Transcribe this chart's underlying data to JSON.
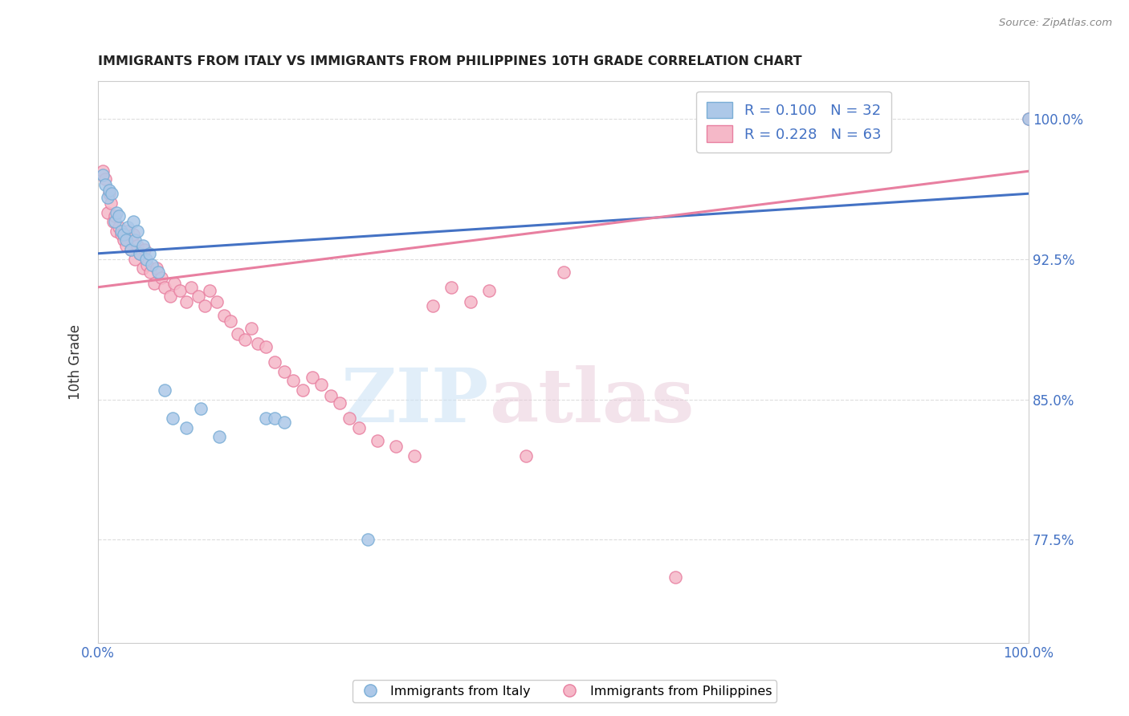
{
  "title": "IMMIGRANTS FROM ITALY VS IMMIGRANTS FROM PHILIPPINES 10TH GRADE CORRELATION CHART",
  "source": "Source: ZipAtlas.com",
  "ylabel": "10th Grade",
  "xlim": [
    0.0,
    1.0
  ],
  "ylim": [
    0.72,
    1.02
  ],
  "yticks": [
    0.775,
    0.85,
    0.925,
    1.0
  ],
  "ytick_labels": [
    "77.5%",
    "85.0%",
    "92.5%",
    "100.0%"
  ],
  "xticks": [
    0.0,
    0.2,
    0.4,
    0.6,
    0.8,
    1.0
  ],
  "xtick_labels": [
    "0.0%",
    "",
    "",
    "",
    "",
    "100.0%"
  ],
  "italy_color": "#adc8e8",
  "italy_edge_color": "#7aaed6",
  "philippines_color": "#f5b8c8",
  "philippines_edge_color": "#e87fa0",
  "italy_line_color": "#4472c4",
  "philippines_line_color": "#e87fa0",
  "italy_R": 0.1,
  "italy_N": 32,
  "philippines_R": 0.228,
  "philippines_N": 63,
  "legend_italy_label": "Immigrants from Italy",
  "legend_philippines_label": "Immigrants from Philippines",
  "watermark_zip": "ZIP",
  "watermark_atlas": "atlas",
  "background_color": "#ffffff",
  "grid_color": "#dddddd",
  "tick_color": "#4472c4",
  "label_color": "#333333",
  "italy_x": [
    0.005,
    0.008,
    0.01,
    0.012,
    0.015,
    0.018,
    0.02,
    0.022,
    0.025,
    0.028,
    0.03,
    0.032,
    0.035,
    0.038,
    0.04,
    0.042,
    0.045,
    0.048,
    0.052,
    0.055,
    0.058,
    0.065,
    0.072,
    0.08,
    0.095,
    0.11,
    0.13,
    0.18,
    0.19,
    0.2,
    0.29,
    1.0
  ],
  "italy_y": [
    0.97,
    0.965,
    0.958,
    0.962,
    0.96,
    0.945,
    0.95,
    0.948,
    0.94,
    0.938,
    0.935,
    0.942,
    0.93,
    0.945,
    0.935,
    0.94,
    0.928,
    0.932,
    0.925,
    0.928,
    0.922,
    0.918,
    0.855,
    0.84,
    0.835,
    0.845,
    0.83,
    0.84,
    0.84,
    0.838,
    0.775,
    1.0
  ],
  "phil_x": [
    0.005,
    0.008,
    0.01,
    0.012,
    0.014,
    0.016,
    0.018,
    0.02,
    0.022,
    0.025,
    0.028,
    0.03,
    0.032,
    0.035,
    0.038,
    0.04,
    0.042,
    0.045,
    0.048,
    0.05,
    0.053,
    0.056,
    0.06,
    0.063,
    0.068,
    0.072,
    0.078,
    0.082,
    0.088,
    0.095,
    0.1,
    0.108,
    0.115,
    0.12,
    0.128,
    0.135,
    0.142,
    0.15,
    0.158,
    0.165,
    0.172,
    0.18,
    0.19,
    0.2,
    0.21,
    0.22,
    0.23,
    0.24,
    0.25,
    0.26,
    0.27,
    0.28,
    0.3,
    0.32,
    0.34,
    0.36,
    0.38,
    0.4,
    0.42,
    0.46,
    0.5,
    0.62,
    1.0
  ],
  "phil_y": [
    0.972,
    0.968,
    0.95,
    0.96,
    0.955,
    0.945,
    0.948,
    0.94,
    0.942,
    0.938,
    0.935,
    0.932,
    0.94,
    0.93,
    0.938,
    0.925,
    0.932,
    0.928,
    0.92,
    0.93,
    0.922,
    0.918,
    0.912,
    0.92,
    0.915,
    0.91,
    0.905,
    0.912,
    0.908,
    0.902,
    0.91,
    0.905,
    0.9,
    0.908,
    0.902,
    0.895,
    0.892,
    0.885,
    0.882,
    0.888,
    0.88,
    0.878,
    0.87,
    0.865,
    0.86,
    0.855,
    0.862,
    0.858,
    0.852,
    0.848,
    0.84,
    0.835,
    0.828,
    0.825,
    0.82,
    0.9,
    0.91,
    0.902,
    0.908,
    0.82,
    0.918,
    0.755,
    1.0
  ]
}
